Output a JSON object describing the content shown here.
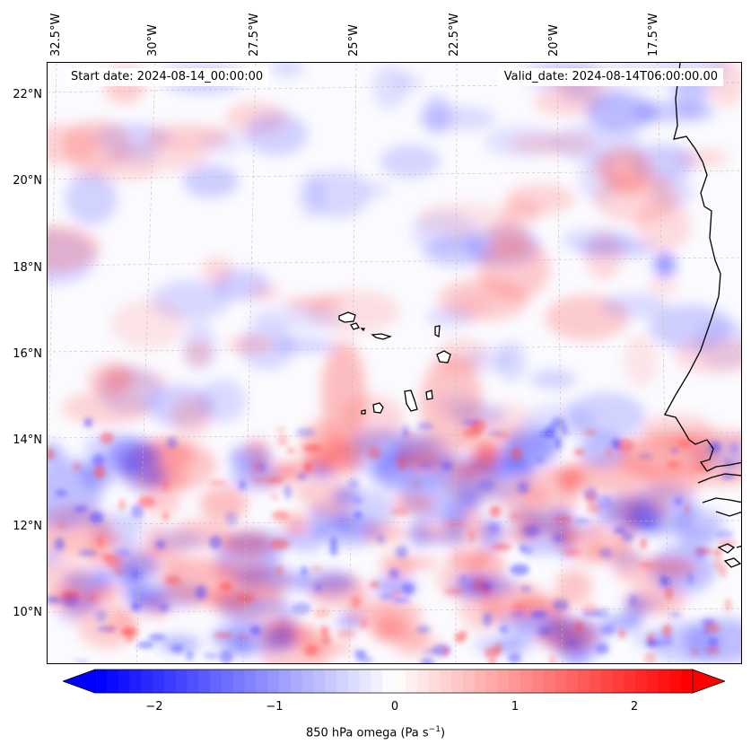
{
  "header": {
    "start_date": "Start date: 2024-08-14_00:00:00",
    "valid_date": "Valid_date: 2024-08-14T06:00:00.00"
  },
  "map": {
    "type": "filled-contour",
    "field": "850 hPa omega",
    "lon_labels": [
      "32.5°W",
      "30°W",
      "27.5°W",
      "25°W",
      "22.5°W",
      "20°W",
      "17.5°W"
    ],
    "lat_labels": [
      "22°N",
      "20°N",
      "18°N",
      "16°N",
      "14°N",
      "12°N",
      "10°N"
    ],
    "gridlines": true,
    "coastline_color": "#000000",
    "colormap": "bwr"
  },
  "colorbar": {
    "ticks": [
      "−2",
      "−1",
      "0",
      "1",
      "2"
    ],
    "range": [
      -2.6,
      2.6
    ],
    "extend": "both",
    "label": "850 hPa omega (Pa s",
    "label_sup": "−1",
    "label_end": ")",
    "low_color": "#0000ff",
    "mid_color": "#ffffff",
    "high_color": "#ff0000"
  }
}
